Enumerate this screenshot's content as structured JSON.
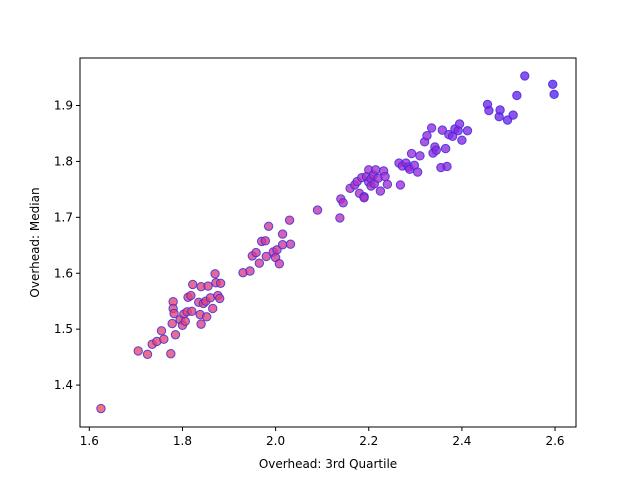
{
  "chart_data": {
    "type": "scatter",
    "title": "",
    "xlabel": "Overhead: 3rd Quartile",
    "ylabel": "Overhead: Median",
    "xlim": [
      1.58,
      2.645
    ],
    "ylim": [
      1.325,
      1.985
    ],
    "xticks": [
      1.6,
      1.8,
      2.0,
      2.2,
      2.4,
      2.6
    ],
    "xtick_labels": [
      "1.6",
      "1.8",
      "2.0",
      "2.2",
      "2.4",
      "2.6"
    ],
    "yticks": [
      1.4,
      1.5,
      1.6,
      1.7,
      1.8,
      1.9
    ],
    "ytick_labels": [
      "1.4",
      "1.5",
      "1.6",
      "1.7",
      "1.8",
      "1.9"
    ],
    "grid": false,
    "legend": "none",
    "marker_edge_color": "#3b2bd9",
    "color_gradient_stops": [
      "#f04a5a",
      "#d63a8a",
      "#a02ad8",
      "#5a1ef0"
    ],
    "points": [
      [
        1.625,
        1.358
      ],
      [
        1.705,
        1.461
      ],
      [
        1.725,
        1.455
      ],
      [
        1.735,
        1.473
      ],
      [
        1.745,
        1.478
      ],
      [
        1.755,
        1.497
      ],
      [
        1.76,
        1.482
      ],
      [
        1.775,
        1.456
      ],
      [
        1.778,
        1.51
      ],
      [
        1.78,
        1.549
      ],
      [
        1.78,
        1.537
      ],
      [
        1.782,
        1.528
      ],
      [
        1.785,
        1.49
      ],
      [
        1.795,
        1.517
      ],
      [
        1.8,
        1.507
      ],
      [
        1.803,
        1.527
      ],
      [
        1.806,
        1.514
      ],
      [
        1.81,
        1.531
      ],
      [
        1.812,
        1.557
      ],
      [
        1.818,
        1.56
      ],
      [
        1.82,
        1.532
      ],
      [
        1.822,
        1.58
      ],
      [
        1.835,
        1.548
      ],
      [
        1.838,
        1.526
      ],
      [
        1.84,
        1.576
      ],
      [
        1.84,
        1.509
      ],
      [
        1.845,
        1.546
      ],
      [
        1.85,
        1.55
      ],
      [
        1.852,
        1.522
      ],
      [
        1.855,
        1.577
      ],
      [
        1.86,
        1.556
      ],
      [
        1.865,
        1.537
      ],
      [
        1.87,
        1.599
      ],
      [
        1.872,
        1.583
      ],
      [
        1.876,
        1.56
      ],
      [
        1.88,
        1.555
      ],
      [
        1.882,
        1.582
      ],
      [
        1.93,
        1.601
      ],
      [
        1.945,
        1.604
      ],
      [
        1.95,
        1.631
      ],
      [
        1.958,
        1.637
      ],
      [
        1.965,
        1.618
      ],
      [
        1.97,
        1.657
      ],
      [
        1.978,
        1.658
      ],
      [
        1.98,
        1.63
      ],
      [
        1.985,
        1.684
      ],
      [
        1.995,
        1.638
      ],
      [
        2.0,
        1.628
      ],
      [
        2.003,
        1.642
      ],
      [
        2.008,
        1.617
      ],
      [
        2.015,
        1.651
      ],
      [
        2.015,
        1.67
      ],
      [
        2.03,
        1.695
      ],
      [
        2.032,
        1.652
      ],
      [
        2.09,
        1.713
      ],
      [
        2.138,
        1.699
      ],
      [
        2.14,
        1.733
      ],
      [
        2.145,
        1.726
      ],
      [
        2.16,
        1.752
      ],
      [
        2.17,
        1.758
      ],
      [
        2.175,
        1.764
      ],
      [
        2.18,
        1.743
      ],
      [
        2.185,
        1.771
      ],
      [
        2.19,
        1.737
      ],
      [
        2.19,
        1.735
      ],
      [
        2.195,
        1.773
      ],
      [
        2.2,
        1.785
      ],
      [
        2.2,
        1.763
      ],
      [
        2.205,
        1.769
      ],
      [
        2.205,
        1.756
      ],
      [
        2.21,
        1.776
      ],
      [
        2.212,
        1.76
      ],
      [
        2.215,
        1.785
      ],
      [
        2.22,
        1.77
      ],
      [
        2.225,
        1.747
      ],
      [
        2.232,
        1.783
      ],
      [
        2.235,
        1.773
      ],
      [
        2.24,
        1.759
      ],
      [
        2.265,
        1.797
      ],
      [
        2.268,
        1.758
      ],
      [
        2.272,
        1.792
      ],
      [
        2.28,
        1.797
      ],
      [
        2.285,
        1.79
      ],
      [
        2.288,
        1.786
      ],
      [
        2.292,
        1.814
      ],
      [
        2.298,
        1.793
      ],
      [
        2.305,
        1.781
      ],
      [
        2.31,
        1.81
      ],
      [
        2.32,
        1.835
      ],
      [
        2.325,
        1.846
      ],
      [
        2.335,
        1.86
      ],
      [
        2.338,
        1.815
      ],
      [
        2.342,
        1.826
      ],
      [
        2.345,
        1.82
      ],
      [
        2.355,
        1.789
      ],
      [
        2.358,
        1.856
      ],
      [
        2.365,
        1.823
      ],
      [
        2.368,
        1.791
      ],
      [
        2.372,
        1.848
      ],
      [
        2.38,
        1.845
      ],
      [
        2.385,
        1.858
      ],
      [
        2.392,
        1.855
      ],
      [
        2.395,
        1.867
      ],
      [
        2.4,
        1.838
      ],
      [
        2.412,
        1.855
      ],
      [
        2.455,
        1.902
      ],
      [
        2.458,
        1.891
      ],
      [
        2.48,
        1.88
      ],
      [
        2.482,
        1.892
      ],
      [
        2.498,
        1.874
      ],
      [
        2.51,
        1.883
      ],
      [
        2.518,
        1.918
      ],
      [
        2.535,
        1.953
      ],
      [
        2.595,
        1.938
      ],
      [
        2.598,
        1.92
      ]
    ]
  }
}
